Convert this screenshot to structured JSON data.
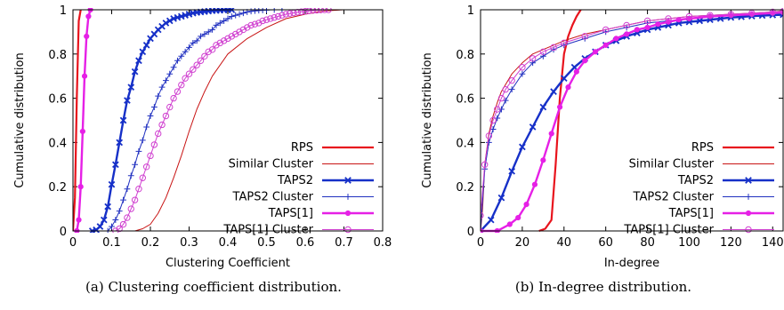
{
  "colors": {
    "rps": "#e8141d",
    "similar": "#c81414",
    "taps2": "#1630c8",
    "taps2_cluster": "#2030c0",
    "taps1": "#e620e6",
    "taps1_cluster": "#d040d0"
  },
  "chart_data": [
    {
      "type": "line",
      "caption": "(a) Clustering coefficient distribution.",
      "xlabel": "Clustering Coefficient",
      "ylabel": "Cumulative distribution",
      "xlim": [
        0,
        0.8
      ],
      "ylim": [
        0,
        1
      ],
      "xticks": [
        0,
        0.1,
        0.2,
        0.3,
        0.4,
        0.5,
        0.6,
        0.7,
        0.8
      ],
      "xtick_labels": [
        "0",
        "0.1",
        "0.2",
        "0.3",
        "0.4",
        "0.5",
        "0.6",
        "0.7",
        "0.8"
      ],
      "yticks": [
        0,
        0.2,
        0.4,
        0.6,
        0.8,
        1
      ],
      "ytick_labels": [
        "0",
        "0.2",
        "0.4",
        "0.6",
        "0.8",
        "1"
      ],
      "legend_position": "bottom-right",
      "series": [
        {
          "name": "RPS",
          "color_key": "rps",
          "width": 2.2,
          "marker": "none",
          "x": [
            0.0,
            0.005,
            0.01,
            0.015,
            0.02
          ],
          "y": [
            0,
            0.15,
            0.6,
            0.95,
            1.0
          ]
        },
        {
          "name": "Similar Cluster",
          "color_key": "similar",
          "width": 1,
          "marker": "none",
          "x": [
            0.16,
            0.18,
            0.2,
            0.22,
            0.24,
            0.26,
            0.28,
            0.3,
            0.32,
            0.34,
            0.36,
            0.4,
            0.45,
            0.5,
            0.55,
            0.6,
            0.65,
            0.7,
            0.75
          ],
          "y": [
            0,
            0.01,
            0.03,
            0.08,
            0.15,
            0.24,
            0.34,
            0.45,
            0.55,
            0.63,
            0.7,
            0.8,
            0.87,
            0.92,
            0.96,
            0.98,
            0.995,
            1.0,
            1.0
          ]
        },
        {
          "name": "TAPS2",
          "color_key": "taps2",
          "width": 2.4,
          "marker": "x",
          "x": [
            0.05,
            0.06,
            0.07,
            0.08,
            0.09,
            0.1,
            0.11,
            0.12,
            0.13,
            0.14,
            0.15,
            0.16,
            0.17,
            0.18,
            0.19,
            0.2,
            0.21,
            0.22,
            0.23,
            0.24,
            0.25,
            0.26,
            0.27,
            0.28,
            0.29,
            0.3,
            0.31,
            0.32,
            0.33,
            0.34,
            0.35,
            0.36,
            0.37,
            0.38,
            0.39,
            0.4,
            0.41
          ],
          "y": [
            0,
            0.005,
            0.02,
            0.05,
            0.11,
            0.21,
            0.3,
            0.4,
            0.5,
            0.59,
            0.65,
            0.72,
            0.77,
            0.81,
            0.84,
            0.87,
            0.89,
            0.91,
            0.925,
            0.94,
            0.95,
            0.96,
            0.965,
            0.97,
            0.975,
            0.98,
            0.985,
            0.988,
            0.99,
            0.992,
            0.994,
            0.996,
            0.997,
            0.998,
            0.999,
            1.0,
            1.0
          ]
        },
        {
          "name": "TAPS2 Cluster",
          "color_key": "taps2_cluster",
          "width": 1,
          "marker": "plus",
          "x": [
            0.09,
            0.1,
            0.11,
            0.12,
            0.13,
            0.14,
            0.15,
            0.16,
            0.17,
            0.18,
            0.19,
            0.2,
            0.21,
            0.22,
            0.23,
            0.24,
            0.25,
            0.26,
            0.27,
            0.28,
            0.29,
            0.3,
            0.31,
            0.32,
            0.33,
            0.34,
            0.35,
            0.36,
            0.37,
            0.38,
            0.39,
            0.4,
            0.41,
            0.42,
            0.43,
            0.44,
            0.45,
            0.46,
            0.47,
            0.48,
            0.49,
            0.5,
            0.52,
            0.54
          ],
          "y": [
            0,
            0.02,
            0.05,
            0.09,
            0.14,
            0.19,
            0.25,
            0.3,
            0.36,
            0.41,
            0.47,
            0.52,
            0.56,
            0.61,
            0.65,
            0.68,
            0.71,
            0.74,
            0.77,
            0.79,
            0.81,
            0.83,
            0.85,
            0.86,
            0.88,
            0.89,
            0.9,
            0.91,
            0.93,
            0.94,
            0.95,
            0.96,
            0.97,
            0.975,
            0.98,
            0.985,
            0.99,
            0.993,
            0.995,
            0.997,
            0.998,
            0.999,
            1.0,
            1.0
          ]
        },
        {
          "name": "TAPS[1]",
          "color_key": "taps1",
          "width": 2.4,
          "marker": "dot",
          "x": [
            0.01,
            0.015,
            0.02,
            0.025,
            0.03,
            0.035,
            0.04,
            0.045
          ],
          "y": [
            0,
            0.05,
            0.2,
            0.45,
            0.7,
            0.88,
            0.97,
            1.0
          ]
        },
        {
          "name": "TAPS[1] Cluster",
          "color_key": "taps1_cluster",
          "width": 1,
          "marker": "circle",
          "x": [
            0.11,
            0.12,
            0.13,
            0.14,
            0.15,
            0.16,
            0.17,
            0.18,
            0.19,
            0.2,
            0.21,
            0.22,
            0.23,
            0.24,
            0.25,
            0.26,
            0.27,
            0.28,
            0.29,
            0.3,
            0.31,
            0.32,
            0.33,
            0.34,
            0.35,
            0.36,
            0.37,
            0.38,
            0.39,
            0.4,
            0.41,
            0.42,
            0.43,
            0.44,
            0.45,
            0.46,
            0.47,
            0.48,
            0.49,
            0.5,
            0.51,
            0.52,
            0.53,
            0.54,
            0.55,
            0.56,
            0.57,
            0.58,
            0.59,
            0.6,
            0.61,
            0.62,
            0.63,
            0.64,
            0.65,
            0.66
          ],
          "y": [
            0,
            0.01,
            0.03,
            0.06,
            0.1,
            0.14,
            0.19,
            0.24,
            0.29,
            0.34,
            0.39,
            0.44,
            0.48,
            0.52,
            0.56,
            0.6,
            0.63,
            0.66,
            0.69,
            0.71,
            0.73,
            0.75,
            0.77,
            0.79,
            0.81,
            0.82,
            0.84,
            0.85,
            0.86,
            0.87,
            0.88,
            0.89,
            0.9,
            0.91,
            0.92,
            0.93,
            0.935,
            0.94,
            0.95,
            0.955,
            0.96,
            0.965,
            0.97,
            0.975,
            0.98,
            0.983,
            0.986,
            0.989,
            0.991,
            0.993,
            0.995,
            0.997,
            0.998,
            0.999,
            1.0,
            1.0
          ]
        }
      ]
    },
    {
      "type": "line",
      "caption": "(b) In-degree distribution.",
      "xlabel": "In-degree",
      "ylabel": "Cumulative distribution",
      "xlim": [
        0,
        145
      ],
      "ylim": [
        0,
        1
      ],
      "xticks": [
        0,
        20,
        40,
        60,
        80,
        100,
        120,
        140
      ],
      "xtick_labels": [
        "0",
        "20",
        "40",
        "60",
        "80",
        "100",
        "120",
        "140"
      ],
      "yticks": [
        0,
        0.2,
        0.4,
        0.6,
        0.8,
        1
      ],
      "ytick_labels": [
        "0",
        "0.2",
        "0.4",
        "0.6",
        "0.8",
        "1"
      ],
      "legend_position": "bottom-right",
      "series": [
        {
          "name": "RPS",
          "color_key": "rps",
          "width": 2.2,
          "marker": "none",
          "x": [
            28,
            31,
            34,
            36,
            38,
            40,
            42,
            44,
            46,
            48
          ],
          "y": [
            0,
            0.01,
            0.05,
            0.3,
            0.6,
            0.8,
            0.88,
            0.93,
            0.97,
            1.0
          ]
        },
        {
          "name": "Similar Cluster",
          "color_key": "similar",
          "width": 1,
          "marker": "none",
          "x": [
            0,
            1,
            2,
            4,
            6,
            8,
            10,
            15,
            20,
            25,
            30,
            40,
            50,
            60,
            70,
            80,
            90,
            100,
            110,
            120,
            130,
            140,
            145
          ],
          "y": [
            0,
            0.1,
            0.3,
            0.44,
            0.52,
            0.58,
            0.63,
            0.71,
            0.76,
            0.8,
            0.82,
            0.86,
            0.89,
            0.91,
            0.93,
            0.95,
            0.96,
            0.97,
            0.975,
            0.98,
            0.985,
            0.99,
            0.995
          ]
        },
        {
          "name": "TAPS2",
          "color_key": "taps2",
          "width": 2.4,
          "marker": "x",
          "x": [
            0,
            5,
            10,
            15,
            20,
            25,
            30,
            35,
            40,
            45,
            50,
            55,
            60,
            65,
            70,
            75,
            80,
            85,
            90,
            95,
            100,
            105,
            110,
            115,
            120,
            125,
            130,
            135,
            140,
            145
          ],
          "y": [
            0,
            0.05,
            0.15,
            0.27,
            0.38,
            0.47,
            0.56,
            0.63,
            0.69,
            0.74,
            0.78,
            0.81,
            0.84,
            0.86,
            0.88,
            0.895,
            0.91,
            0.92,
            0.93,
            0.94,
            0.945,
            0.95,
            0.955,
            0.96,
            0.965,
            0.968,
            0.971,
            0.974,
            0.976,
            0.978
          ]
        },
        {
          "name": "TAPS2 Cluster",
          "color_key": "taps2_cluster",
          "width": 1,
          "marker": "plus",
          "x": [
            0,
            2,
            4,
            6,
            8,
            10,
            12,
            15,
            20,
            25,
            30,
            35,
            40,
            50,
            60,
            70,
            80,
            90,
            100,
            110,
            120,
            130,
            140,
            145
          ],
          "y": [
            0,
            0.28,
            0.4,
            0.46,
            0.51,
            0.55,
            0.59,
            0.64,
            0.71,
            0.76,
            0.79,
            0.82,
            0.84,
            0.87,
            0.9,
            0.92,
            0.94,
            0.95,
            0.96,
            0.97,
            0.975,
            0.98,
            0.985,
            0.99
          ]
        },
        {
          "name": "TAPS[1]",
          "color_key": "taps1",
          "width": 2.4,
          "marker": "dot",
          "x": [
            0,
            8,
            14,
            18,
            22,
            26,
            30,
            34,
            38,
            42,
            46,
            50,
            55,
            60,
            65,
            70,
            75,
            80,
            85,
            90,
            95,
            100,
            110,
            120,
            130,
            140,
            145
          ],
          "y": [
            0,
            0.0,
            0.03,
            0.06,
            0.12,
            0.21,
            0.32,
            0.44,
            0.56,
            0.65,
            0.72,
            0.77,
            0.81,
            0.84,
            0.87,
            0.89,
            0.91,
            0.92,
            0.935,
            0.945,
            0.955,
            0.96,
            0.97,
            0.975,
            0.98,
            0.985,
            0.988
          ]
        },
        {
          "name": "TAPS[1] Cluster",
          "color_key": "taps1_cluster",
          "width": 1,
          "marker": "circle",
          "x": [
            0,
            2,
            4,
            6,
            8,
            10,
            12,
            15,
            20,
            25,
            30,
            35,
            40,
            50,
            60,
            70,
            80,
            90,
            100,
            110,
            120,
            130,
            140,
            145
          ],
          "y": [
            0.07,
            0.3,
            0.43,
            0.5,
            0.55,
            0.6,
            0.64,
            0.68,
            0.74,
            0.78,
            0.81,
            0.83,
            0.85,
            0.88,
            0.91,
            0.93,
            0.95,
            0.96,
            0.97,
            0.975,
            0.98,
            0.985,
            0.99,
            0.993
          ]
        }
      ]
    }
  ]
}
